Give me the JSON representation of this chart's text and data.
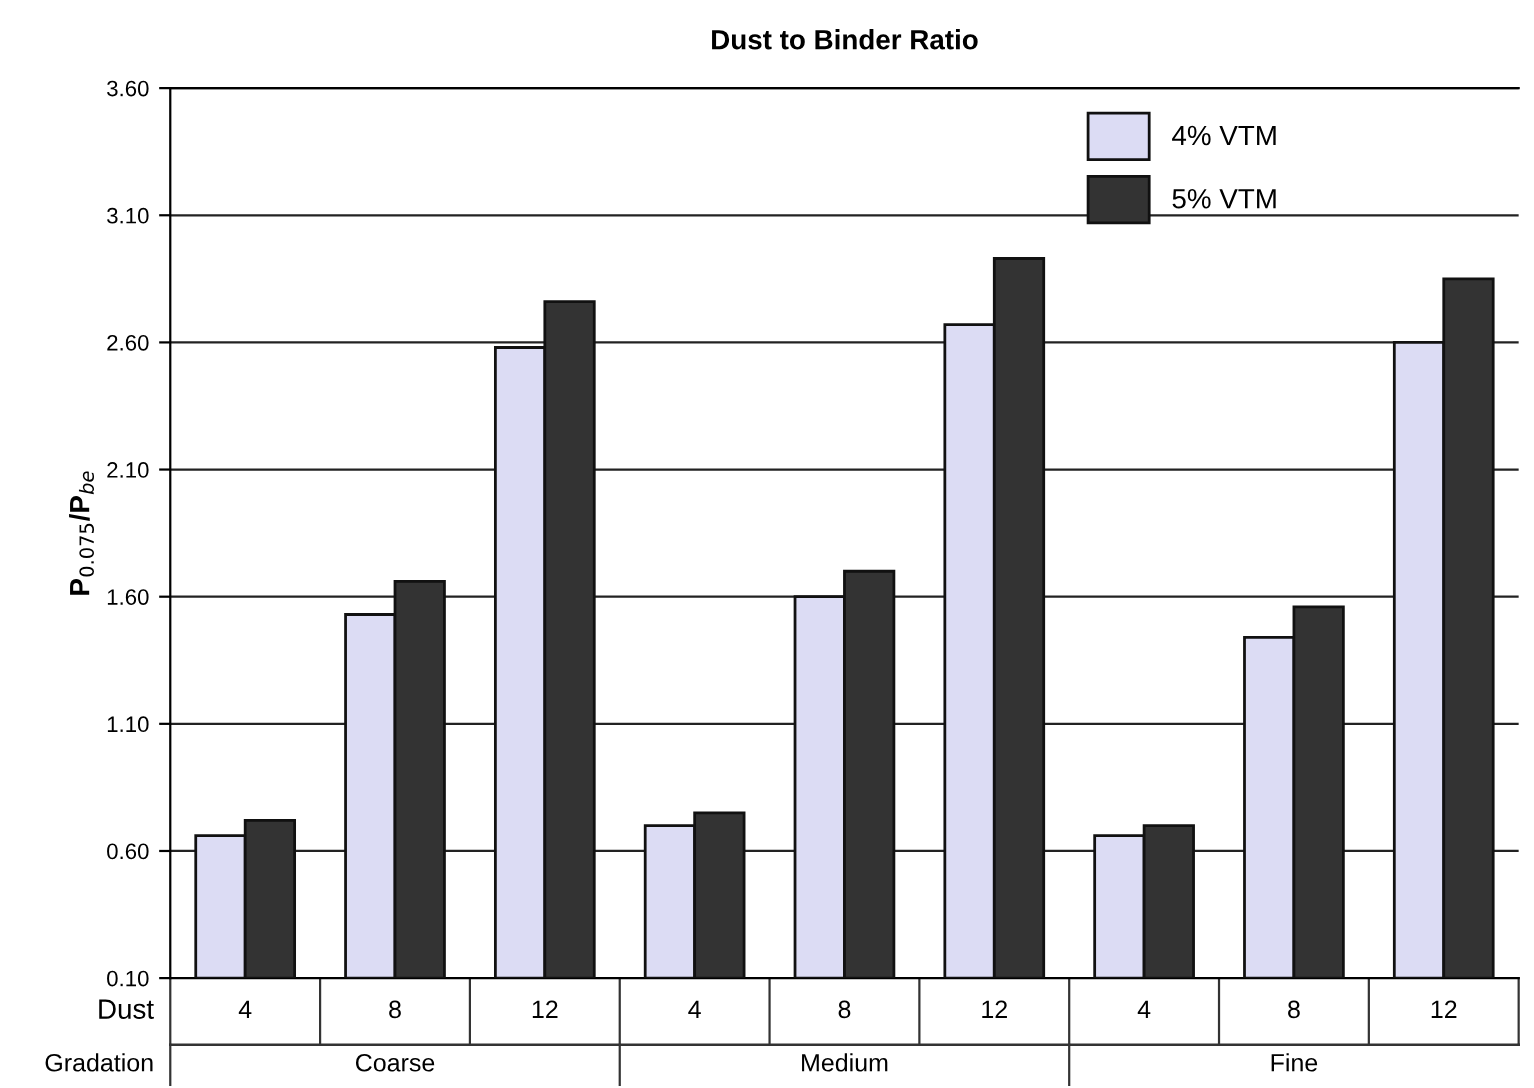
{
  "chart_data": {
    "type": "bar",
    "title": "Dust to Binder Ratio",
    "ylabel": "P$_{0.075}$/P$_{be}$",
    "categories": [
      "4",
      "8",
      "12",
      "4",
      "8",
      "12",
      "4",
      "8",
      "12"
    ],
    "annotations": [
      "Dust",
      "Gradation",
      "Coarse",
      "Medium",
      "Fine"
    ],
    "series": [
      {
        "name": "4% VTM",
        "color": "#dcdcf4",
        "values": [
          0.66,
          1.53,
          2.58,
          0.7,
          1.6,
          2.67,
          0.66,
          1.44,
          2.6
        ]
      },
      {
        "name": "5% VTM",
        "color": "#333333",
        "values": [
          0.72,
          1.66,
          2.76,
          0.75,
          1.7,
          2.93,
          0.7,
          1.56,
          2.85
        ]
      }
    ],
    "ylim": [
      0.1,
      3.6
    ],
    "yticks": [
      {
        "value": 0.1,
        "label": "0.10"
      },
      {
        "value": 0.6,
        "label": "0.60"
      },
      {
        "value": 1.1,
        "label": "1.10"
      },
      {
        "value": 1.6,
        "label": "1.60"
      },
      {
        "value": 2.1,
        "label": "2.10"
      },
      {
        "value": 2.6,
        "label": "2.60"
      },
      {
        "value": 3.1,
        "label": "3.10"
      },
      {
        "value": 3.6,
        "label": "3.60"
      }
    ],
    "grid": "y",
    "legend": "top right"
  }
}
